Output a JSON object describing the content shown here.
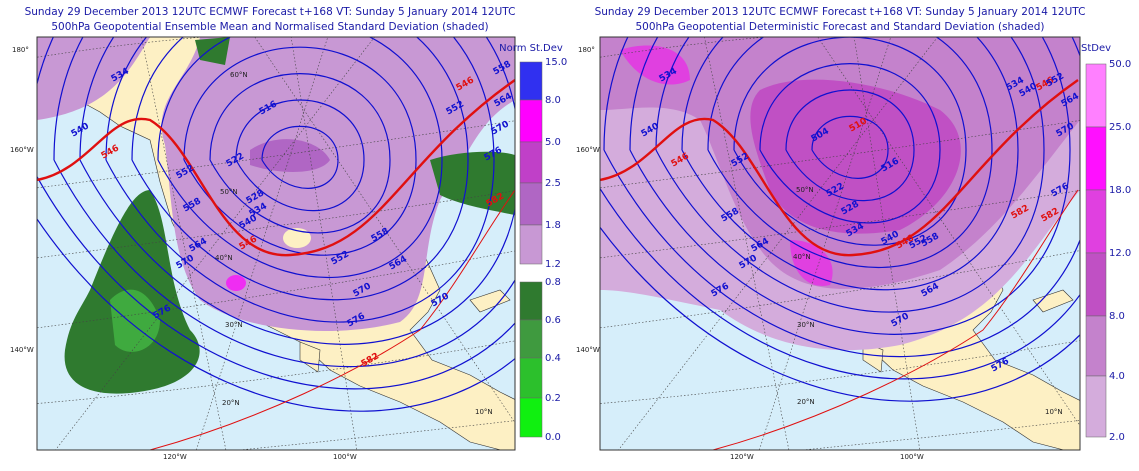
{
  "panels": [
    {
      "title": "Sunday 29 December 2013 12UTC ECMWF Forecast t+168  VT: Sunday 5 January 2014 12UTC",
      "subtitle": "500hPa Geopotential Ensemble Mean and Normalised Standard Deviation (shaded)",
      "colorbar_title": "Norm St.Dev",
      "colorbar_ticks": [
        "15.0",
        "8.0",
        "5.0",
        "2.5",
        "1.8",
        "1.2",
        "0.8",
        "0.6",
        "0.4",
        "0.2",
        "0.0"
      ],
      "colorbar_colors": [
        "#3030f0",
        "#ff00ff",
        "#c040c8",
        "#b066c4",
        "#c898d4",
        null,
        "#2f7a2f",
        "#3f9a3f",
        "#2cc02c",
        "#10f010"
      ],
      "edge_labels": [
        "180°",
        "160°W",
        "140°W",
        "120°W",
        "100°W"
      ],
      "lat_labels": [
        "60°N",
        "50°N",
        "40°N",
        "30°N",
        "20°N",
        "10°N"
      ],
      "contour_labels": [
        "534",
        "540",
        "546",
        "552",
        "558",
        "564",
        "570",
        "576",
        "516",
        "522",
        "528",
        "534",
        "540",
        "546",
        "552",
        "558",
        "564",
        "570",
        "576",
        "582",
        "546",
        "552",
        "558",
        "564",
        "570",
        "576",
        "582",
        "570"
      ]
    },
    {
      "title": "Sunday 29 December 2013 12UTC ECMWF Forecast t+168  VT: Sunday 5 January 2014 12UTC",
      "subtitle": "500hPa Geopotential Deterministic Forecast and Standard Deviation (shaded)",
      "colorbar_title": "StDev",
      "colorbar_ticks": [
        "50.0",
        "25.0",
        "18.0",
        "12.0",
        "8.0",
        "4.0",
        "2.0"
      ],
      "colorbar_colors": [
        "#ff80ff",
        "#ff10ff",
        "#e040e0",
        "#c050c4",
        "#c482cc",
        "#d4acdc"
      ],
      "edge_labels": [
        "180°",
        "160°W",
        "140°W",
        "120°W",
        "100°W"
      ],
      "lat_labels": [
        "50°N",
        "40°N",
        "30°N",
        "20°N",
        "10°N"
      ],
      "contour_labels": [
        "534",
        "540",
        "546",
        "552",
        "558",
        "564",
        "570",
        "576",
        "510",
        "504",
        "516",
        "522",
        "528",
        "534",
        "540",
        "546",
        "552",
        "558",
        "564",
        "570",
        "576",
        "582",
        "534",
        "540",
        "546",
        "552",
        "564",
        "570",
        "576",
        "582"
      ]
    }
  ]
}
